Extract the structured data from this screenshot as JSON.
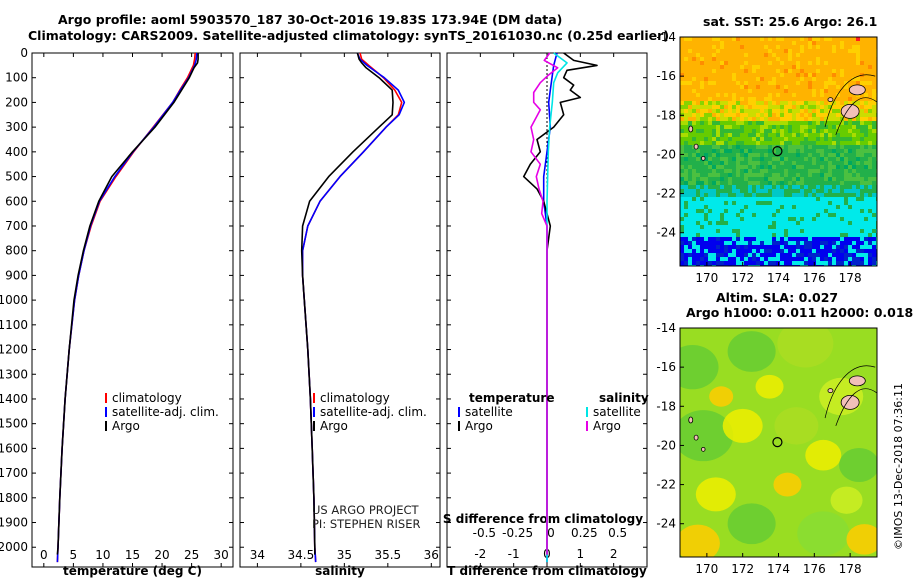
{
  "header": {
    "title_line1": "Argo profile: aoml 5903570_187 30-Oct-2016 19.83S 173.94E (DM data)",
    "title_line2": "Climatology: CARS2009. Satellite-adjusted climatology: synTS_20161030.nc (0.25d earlier)"
  },
  "colors": {
    "climatology": "#ff0000",
    "satellite": "#0000ff",
    "argo": "#000000",
    "salinity_satellite": "#00e5e5",
    "salinity_argo": "#e600e6"
  },
  "chart_data": [
    {
      "type": "line",
      "id": "temperature-panel",
      "xlabel": "temperature (deg C)",
      "xlim": [
        -2,
        32
      ],
      "xticks": [
        0,
        5,
        10,
        15,
        20,
        25,
        30
      ],
      "ylim": [
        2080,
        0
      ],
      "yticks": [
        0,
        100,
        200,
        300,
        400,
        500,
        600,
        700,
        800,
        900,
        1000,
        1100,
        1200,
        1300,
        1400,
        1500,
        1600,
        1700,
        1800,
        1900,
        2000
      ],
      "legend": [
        "climatology",
        "satellite-adj. clim.",
        "Argo"
      ],
      "series": [
        {
          "name": "climatology",
          "depth": [
            0,
            25,
            50,
            100,
            150,
            200,
            300,
            400,
            500,
            600,
            700,
            800,
            900,
            1000,
            1200,
            1400,
            1600,
            1800,
            2000,
            2060
          ],
          "values": [
            25.6,
            25.5,
            25.3,
            24.3,
            23.0,
            21.8,
            18.5,
            15.2,
            12.2,
            9.5,
            8.0,
            6.8,
            5.9,
            5.2,
            4.3,
            3.6,
            3.1,
            2.7,
            2.4,
            2.3
          ]
        },
        {
          "name": "satellite-adj. clim.",
          "depth": [
            0,
            25,
            50,
            100,
            150,
            200,
            300,
            400,
            500,
            600,
            700,
            800,
            900,
            1000,
            1200,
            1400,
            1600,
            1800,
            2000,
            2060
          ],
          "values": [
            25.9,
            25.8,
            25.5,
            24.5,
            23.1,
            21.8,
            18.6,
            15.1,
            12.0,
            9.4,
            7.9,
            6.8,
            5.9,
            5.2,
            4.3,
            3.6,
            3.1,
            2.7,
            2.4,
            2.3
          ]
        },
        {
          "name": "Argo",
          "depth": [
            0,
            25,
            40,
            60,
            100,
            150,
            200,
            300,
            400,
            500,
            600,
            700,
            800,
            900,
            1000,
            1200,
            1400,
            1600,
            1800,
            2000,
            2030
          ],
          "values": [
            26.1,
            26.1,
            26.0,
            25.4,
            24.6,
            23.3,
            22.0,
            18.8,
            15.0,
            11.5,
            9.3,
            7.8,
            6.7,
            5.8,
            5.1,
            4.3,
            3.6,
            3.1,
            2.7,
            2.4,
            2.3
          ]
        }
      ]
    },
    {
      "type": "line",
      "id": "salinity-panel",
      "xlabel": "salinity",
      "xlim": [
        33.8,
        36.1
      ],
      "xticks": [
        34,
        34.5,
        35,
        35.5,
        36
      ],
      "ylim": [
        2080,
        0
      ],
      "legend": [
        "climatology",
        "satellite-adj. clim.",
        "Argo"
      ],
      "annotation": [
        "US ARGO PROJECT",
        "PI: STEPHEN RISER"
      ],
      "series": [
        {
          "name": "climatology",
          "depth": [
            0,
            25,
            50,
            100,
            150,
            200,
            250,
            300,
            400,
            500,
            600,
            700,
            800,
            900,
            1000,
            1200,
            1400,
            1600,
            1800,
            2000,
            2060
          ],
          "values": [
            35.18,
            35.2,
            35.28,
            35.45,
            35.58,
            35.66,
            35.62,
            35.48,
            35.22,
            34.95,
            34.72,
            34.58,
            34.52,
            34.52,
            34.54,
            34.58,
            34.61,
            34.63,
            34.65,
            34.66,
            34.67
          ]
        },
        {
          "name": "satellite-adj. clim.",
          "depth": [
            0,
            25,
            50,
            100,
            150,
            200,
            250,
            300,
            400,
            500,
            600,
            700,
            800,
            900,
            1000,
            1200,
            1400,
            1600,
            1800,
            2000,
            2060
          ],
          "values": [
            35.15,
            35.18,
            35.26,
            35.46,
            35.62,
            35.69,
            35.63,
            35.48,
            35.22,
            34.95,
            34.72,
            34.58,
            34.52,
            34.52,
            34.54,
            34.58,
            34.61,
            34.63,
            34.65,
            34.66,
            34.67
          ]
        },
        {
          "name": "Argo",
          "depth": [
            0,
            25,
            40,
            60,
            100,
            150,
            200,
            250,
            300,
            400,
            500,
            600,
            700,
            800,
            900,
            1000,
            1200,
            1400,
            1600,
            1800,
            2000,
            2030
          ],
          "values": [
            35.15,
            35.17,
            35.2,
            35.25,
            35.4,
            35.55,
            35.56,
            35.55,
            35.4,
            35.1,
            34.82,
            34.6,
            34.52,
            34.51,
            34.52,
            34.54,
            34.58,
            34.61,
            34.63,
            34.65,
            34.66,
            34.66
          ]
        }
      ]
    },
    {
      "type": "line",
      "id": "difference-panel",
      "xlabel": "T difference from climatology",
      "xlabel_top": "S difference from climatology",
      "xlim": [
        -3,
        3
      ],
      "xticks": [
        -2,
        -1,
        0,
        1,
        2
      ],
      "xticks_top": [
        "-0.5",
        "-0.25",
        "0",
        "0.25",
        "0.5"
      ],
      "ylim": [
        2080,
        0
      ],
      "legend_temperature_title": "temperature",
      "legend_salinity_title": "salinity",
      "legend_temperature": [
        "satellite",
        "Argo"
      ],
      "legend_salinity": [
        "satellite",
        "Argo"
      ],
      "series": [
        {
          "name": "temperature satellite",
          "depth": [
            0,
            50,
            100,
            150,
            200,
            300,
            400,
            500,
            600,
            700,
            800,
            1000,
            1500,
            2000,
            2060
          ],
          "values": [
            0.3,
            0.2,
            0.15,
            0.1,
            0.05,
            0.1,
            0.0,
            -0.1,
            -0.1,
            0.0,
            0.0,
            0.0,
            0.0,
            0.0,
            0.0
          ]
        },
        {
          "name": "temperature Argo",
          "depth": [
            0,
            30,
            50,
            70,
            100,
            130,
            150,
            180,
            200,
            250,
            300,
            350,
            400,
            450,
            500,
            550,
            600,
            700,
            800,
            1000,
            1500,
            2000,
            2030
          ],
          "values": [
            0.5,
            0.8,
            1.5,
            0.6,
            0.5,
            0.8,
            0.7,
            1.0,
            0.4,
            0.5,
            0.2,
            -0.3,
            -0.2,
            -0.5,
            -0.7,
            -0.3,
            -0.1,
            0.1,
            0.0,
            0.0,
            0.0,
            0.0,
            0.0
          ]
        },
        {
          "name": "salinity satellite",
          "depth": [
            0,
            40,
            80,
            120,
            200,
            300,
            400,
            600,
            800,
            1000,
            1500,
            2000,
            2060
          ],
          "values": [
            0.05,
            0.15,
            0.08,
            0.05,
            0.04,
            0.02,
            0.01,
            0.0,
            0.0,
            0.0,
            0.0,
            0.0,
            0.0
          ]
        },
        {
          "name": "salinity Argo",
          "depth": [
            0,
            30,
            60,
            90,
            120,
            160,
            200,
            230,
            260,
            300,
            350,
            400,
            450,
            500,
            550,
            600,
            650,
            700,
            800,
            900,
            1000,
            1500,
            2000,
            2030
          ],
          "values": [
            0.02,
            -0.02,
            0.08,
            0.01,
            -0.05,
            -0.1,
            -0.1,
            -0.05,
            -0.08,
            -0.12,
            -0.1,
            -0.12,
            -0.05,
            -0.08,
            -0.06,
            -0.03,
            -0.04,
            0.0,
            0.0,
            0.0,
            0.0,
            0.0,
            0.0,
            0.0
          ]
        }
      ]
    },
    {
      "type": "heatmap",
      "id": "sst-map",
      "title": "sat. SST: 25.6 Argo: 26.1",
      "xticks": [
        "170",
        "172",
        "174",
        "176",
        "178"
      ],
      "yticks": [
        "-14",
        "-16",
        "-18",
        "-20",
        "-22",
        "-24"
      ],
      "xlim": [
        168.5,
        179.5
      ],
      "ylim": [
        -25.7,
        -14
      ],
      "float_position": [
        173.94,
        -19.83
      ]
    },
    {
      "type": "heatmap",
      "id": "sla-map",
      "title_line1": "Altim. SLA: 0.027",
      "title_line2": "Argo h1000: 0.011 h2000: 0.018",
      "xticks": [
        "170",
        "172",
        "174",
        "176",
        "178"
      ],
      "yticks": [
        "-14",
        "-16",
        "-18",
        "-20",
        "-22",
        "-24"
      ],
      "xlim": [
        168.5,
        179.5
      ],
      "ylim": [
        -25.7,
        -14
      ],
      "float_position": [
        173.94,
        -19.83
      ]
    }
  ],
  "footer": {
    "credit": "©IMOS 13-Dec-2018 07:36:11"
  }
}
